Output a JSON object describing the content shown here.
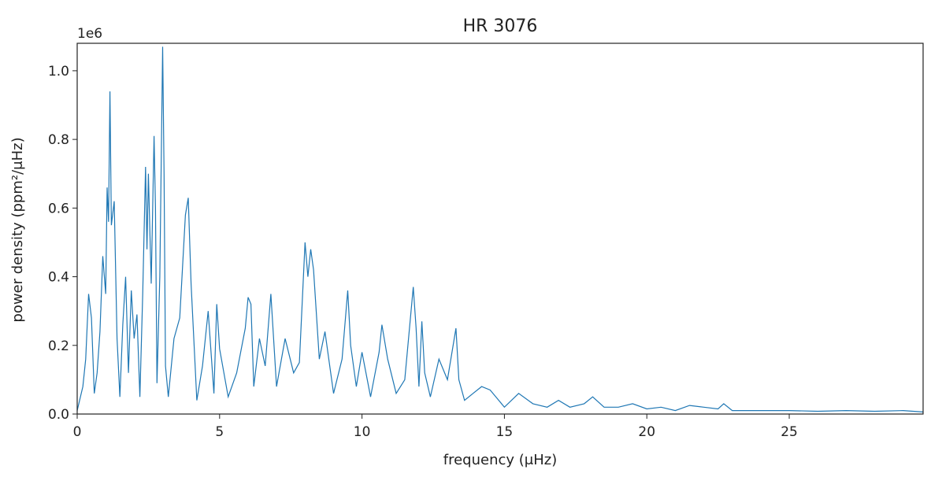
{
  "chart_data": {
    "type": "line",
    "title": "HR 3076",
    "xlabel": "frequency (μHz)",
    "ylabel": "power density (ppm²/μHz)",
    "y_multiplier": "1e6",
    "xlim": [
      0,
      29.7
    ],
    "ylim": [
      0,
      1.08
    ],
    "x_ticks": [
      0,
      5,
      10,
      15,
      20,
      25
    ],
    "x_tick_labels": [
      "0",
      "5",
      "10",
      "15",
      "20",
      "25"
    ],
    "y_ticks": [
      0.0,
      0.2,
      0.4,
      0.6,
      0.8,
      1.0
    ],
    "y_tick_labels": [
      "0.0",
      "0.2",
      "0.4",
      "0.6",
      "0.8",
      "1.0"
    ],
    "grid": false,
    "legend": "none",
    "series": [
      {
        "color": "#1f77b4",
        "x": [
          0.0,
          0.2,
          0.3,
          0.4,
          0.5,
          0.6,
          0.7,
          0.8,
          0.9,
          1.0,
          1.05,
          1.1,
          1.15,
          1.2,
          1.3,
          1.4,
          1.5,
          1.6,
          1.7,
          1.8,
          1.9,
          2.0,
          2.1,
          2.2,
          2.3,
          2.4,
          2.45,
          2.5,
          2.6,
          2.7,
          2.75,
          2.8,
          2.9,
          3.0,
          3.05,
          3.1,
          3.2,
          3.4,
          3.6,
          3.8,
          3.9,
          4.0,
          4.2,
          4.4,
          4.6,
          4.8,
          4.9,
          5.0,
          5.3,
          5.6,
          5.9,
          6.0,
          6.1,
          6.2,
          6.4,
          6.6,
          6.8,
          7.0,
          7.3,
          7.6,
          7.8,
          8.0,
          8.1,
          8.2,
          8.3,
          8.5,
          8.7,
          9.0,
          9.3,
          9.5,
          9.6,
          9.8,
          10.0,
          10.3,
          10.6,
          10.7,
          10.9,
          11.2,
          11.5,
          11.8,
          11.9,
          12.0,
          12.1,
          12.2,
          12.4,
          12.7,
          13.0,
          13.3,
          13.4,
          13.6,
          13.9,
          14.2,
          14.5,
          14.7,
          15.0,
          15.5,
          16.0,
          16.5,
          16.9,
          17.3,
          17.8,
          18.1,
          18.5,
          19.0,
          19.5,
          20.0,
          20.5,
          21.0,
          21.5,
          22.0,
          22.5,
          22.7,
          23.0,
          24.0,
          25.0,
          26.0,
          27.0,
          28.0,
          29.0,
          29.7
        ],
        "y": [
          0.01,
          0.08,
          0.16,
          0.35,
          0.28,
          0.06,
          0.12,
          0.24,
          0.46,
          0.35,
          0.66,
          0.56,
          0.94,
          0.55,
          0.62,
          0.22,
          0.05,
          0.26,
          0.4,
          0.12,
          0.36,
          0.22,
          0.29,
          0.05,
          0.35,
          0.72,
          0.48,
          0.7,
          0.38,
          0.81,
          0.6,
          0.09,
          0.4,
          1.07,
          0.7,
          0.14,
          0.05,
          0.22,
          0.28,
          0.58,
          0.63,
          0.38,
          0.04,
          0.14,
          0.3,
          0.06,
          0.32,
          0.19,
          0.05,
          0.12,
          0.25,
          0.34,
          0.32,
          0.08,
          0.22,
          0.14,
          0.35,
          0.08,
          0.22,
          0.12,
          0.15,
          0.5,
          0.4,
          0.48,
          0.42,
          0.16,
          0.24,
          0.06,
          0.16,
          0.36,
          0.2,
          0.08,
          0.18,
          0.05,
          0.18,
          0.26,
          0.16,
          0.06,
          0.1,
          0.37,
          0.25,
          0.08,
          0.27,
          0.12,
          0.05,
          0.16,
          0.1,
          0.25,
          0.1,
          0.04,
          0.06,
          0.08,
          0.07,
          0.05,
          0.02,
          0.06,
          0.03,
          0.02,
          0.04,
          0.02,
          0.03,
          0.05,
          0.02,
          0.02,
          0.03,
          0.015,
          0.02,
          0.01,
          0.025,
          0.02,
          0.015,
          0.03,
          0.01,
          0.01,
          0.01,
          0.008,
          0.01,
          0.008,
          0.01,
          0.006
        ]
      }
    ]
  }
}
